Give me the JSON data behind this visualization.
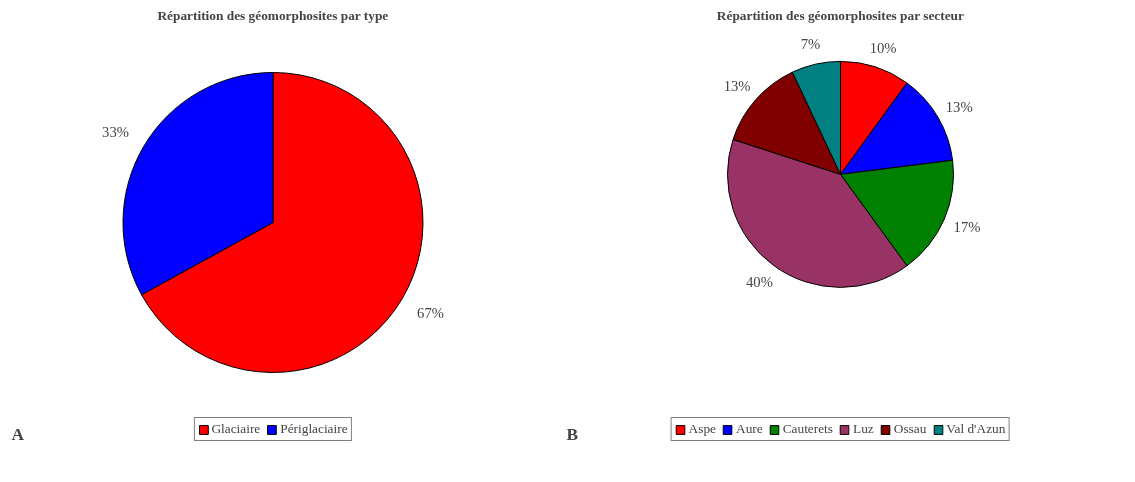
{
  "chart_data": [
    {
      "type": "pie",
      "title": "Répartition des géomorphosites par type",
      "categories": [
        "Glaciaire",
        "Périglaciaire"
      ],
      "values": [
        67,
        33
      ],
      "colors": [
        "#ff0000",
        "#0000ff"
      ],
      "value_labels": [
        "67%",
        "33%"
      ],
      "legend": "bottom",
      "annotations": [
        "A"
      ]
    },
    {
      "type": "pie",
      "title": "Répartition des géomorphosites par secteur",
      "categories": [
        "Aspe",
        "Aure",
        "Cauterets",
        "Luz",
        "Ossau",
        "Val d'Azun"
      ],
      "values": [
        10,
        13,
        17,
        40,
        13,
        7
      ],
      "colors": [
        "#ff0000",
        "#0000ff",
        "#008000",
        "#993366",
        "#800000",
        "#008080"
      ],
      "value_labels": [
        "10%",
        "13%",
        "17%",
        "40%",
        "13%",
        "7%"
      ],
      "legend": "bottom",
      "annotations": [
        "B"
      ]
    }
  ]
}
